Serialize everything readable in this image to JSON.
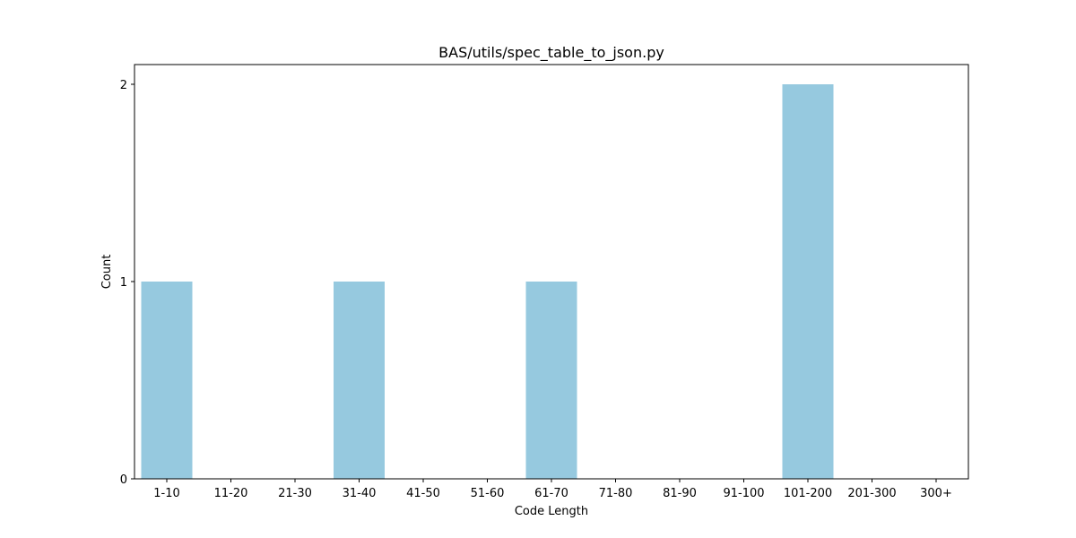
{
  "chart_data": {
    "type": "bar",
    "title": "BAS/utils/spec_table_to_json.py",
    "xlabel": "Code Length",
    "ylabel": "Count",
    "categories": [
      "1-10",
      "11-20",
      "21-30",
      "31-40",
      "41-50",
      "51-60",
      "61-70",
      "71-80",
      "81-90",
      "91-100",
      "101-200",
      "201-300",
      "300+"
    ],
    "values": [
      1,
      0,
      0,
      1,
      0,
      0,
      1,
      0,
      0,
      0,
      2,
      0,
      0
    ],
    "ylim": [
      0,
      2.1
    ],
    "yticks": [
      0,
      1,
      2
    ],
    "grid": false,
    "legend": "none",
    "colors": {
      "bar": "#96c9df",
      "axis": "#000000",
      "background": "#ffffff"
    }
  }
}
